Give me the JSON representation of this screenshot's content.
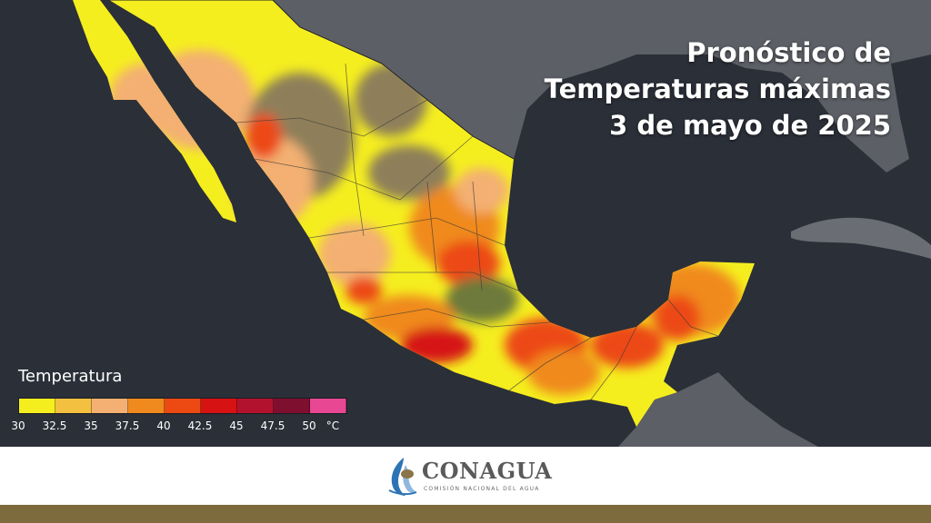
{
  "title": {
    "line1": "Pronóstico de",
    "line2": "Temperaturas máximas",
    "line3": "3 de mayo de 2025"
  },
  "legend": {
    "title": "Temperatura",
    "unit": "°C",
    "ticks": [
      "30",
      "32.5",
      "35",
      "37.5",
      "40",
      "42.5",
      "45",
      "47.5",
      "50"
    ],
    "colors": [
      "#f5ee1f",
      "#f4c040",
      "#f3b072",
      "#f08a1e",
      "#ec4a12",
      "#d61212",
      "#b3122e",
      "#7f0f2f",
      "#e84793"
    ]
  },
  "logo": {
    "name": "CONAGUA",
    "subtitle": "COMISIÓN NACIONAL DEL AGUA"
  },
  "colors": {
    "ocean": "#2b2f38",
    "land_outside": "#5c5f66",
    "footer_bar": "#7d6a3d"
  }
}
